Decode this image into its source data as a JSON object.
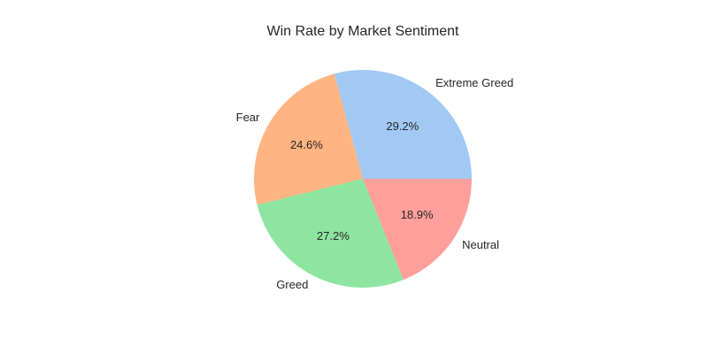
{
  "chart_data": {
    "type": "pie",
    "title": "Win Rate by Market Sentiment",
    "start_angle": "0° (3 o'clock), counter-clockwise",
    "slices": [
      {
        "label": "Extreme Greed",
        "value": 29.2,
        "pct_label": "29.2%",
        "color": "#a1c9f4"
      },
      {
        "label": "Fear",
        "value": 24.6,
        "pct_label": "24.6%",
        "color": "#ffb482"
      },
      {
        "label": "Greed",
        "value": 27.2,
        "pct_label": "27.2%",
        "color": "#8de5a1"
      },
      {
        "label": "Neutral",
        "value": 18.9,
        "pct_label": "18.9%",
        "color": "#ff9f9b"
      }
    ]
  }
}
